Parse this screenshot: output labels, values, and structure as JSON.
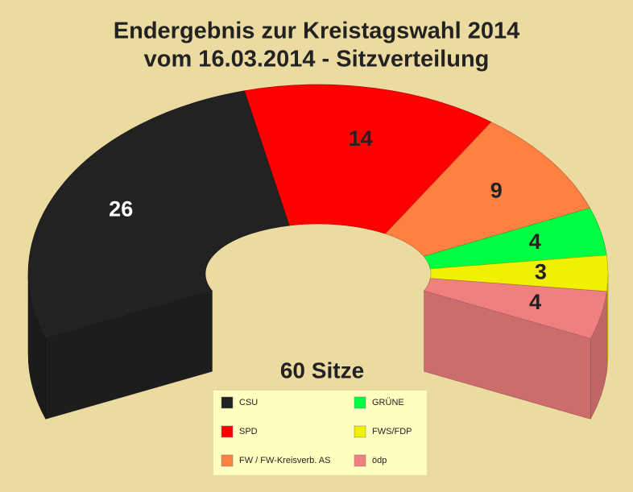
{
  "chart_data": {
    "type": "pie",
    "title": "Endergebnis zur Kreistagswahl 2014",
    "subtitle": "vom 16.03.2014 - Sitzverteilung",
    "center_label": "60 Sitze",
    "categories": [
      "CSU",
      "SPD",
      "FW / FW-Kreisverb. AS",
      "GRÜNE",
      "FWS/FDP",
      "ödp"
    ],
    "values": [
      26,
      14,
      9,
      4,
      3,
      4
    ],
    "colors": [
      "#222222",
      "#ff0000",
      "#ff8040",
      "#00ff40",
      "#f0f000",
      "#f08080"
    ]
  }
}
